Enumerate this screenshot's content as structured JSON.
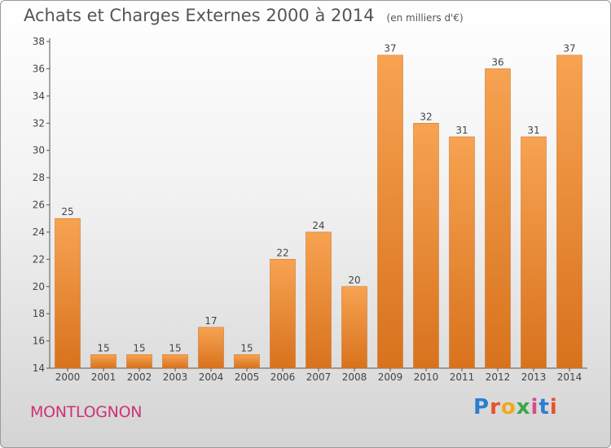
{
  "title": "Achats et Charges Externes 2000 à 2014",
  "unit_note": "(en milliers d'€)",
  "commune": "MONTLOGNON",
  "logo": {
    "letters": [
      "P",
      "r",
      "o",
      "x",
      "i",
      "t",
      "i"
    ],
    "colors": [
      "#2b7fd1",
      "#e8522a",
      "#f2a81c",
      "#3aa84a",
      "#d94a8a",
      "#2b7fd1",
      "#e8522a"
    ]
  },
  "colors": {
    "bar_top": "#f7a352",
    "bar_bottom": "#d8721d",
    "axis": "#555555"
  },
  "chart_data": {
    "type": "bar",
    "categories": [
      "2000",
      "2001",
      "2002",
      "2003",
      "2004",
      "2005",
      "2006",
      "2007",
      "2008",
      "2009",
      "2010",
      "2011",
      "2012",
      "2013",
      "2014"
    ],
    "values": [
      25,
      15,
      15,
      15,
      17,
      15,
      22,
      24,
      20,
      37,
      32,
      31,
      36,
      31,
      37
    ],
    "ylim": [
      14,
      38
    ],
    "yticks": [
      14,
      16,
      18,
      20,
      22,
      24,
      26,
      28,
      30,
      32,
      34,
      36,
      38
    ],
    "grid": false,
    "data_labels": true
  }
}
